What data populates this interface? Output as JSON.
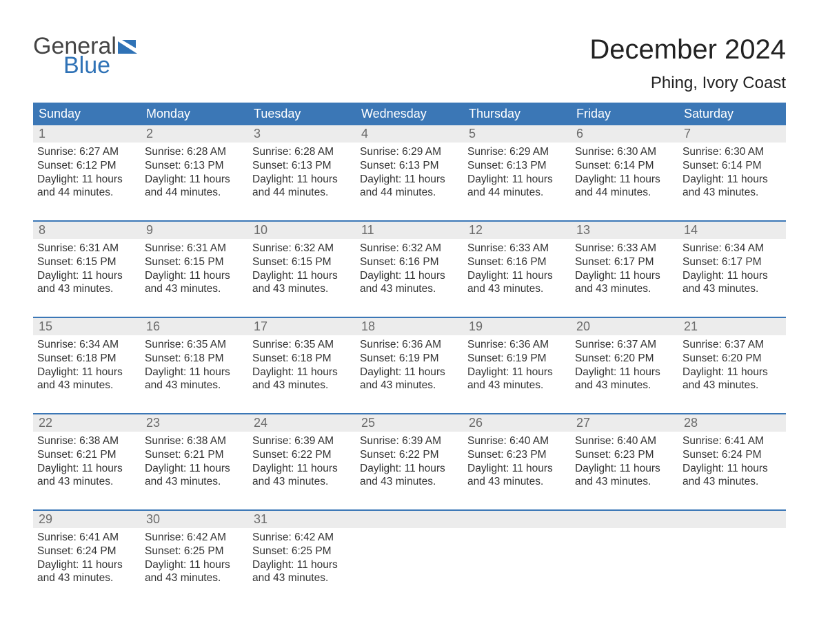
{
  "branding": {
    "word1": "General",
    "word2": "Blue",
    "word1_color": "#444444",
    "word2_color": "#2f72b6",
    "flag_color": "#2f72b6"
  },
  "header": {
    "month_title": "December 2024",
    "location": "Phing, Ivory Coast"
  },
  "styling": {
    "header_bg": "#3b77b6",
    "header_text_color": "#ffffff",
    "daynum_bg": "#ececec",
    "daynum_color": "#6b6b6b",
    "body_text_color": "#333333",
    "week_border_color": "#3b77b6",
    "background_color": "#ffffff",
    "weekday_fontsize": 18,
    "daynum_fontsize": 18,
    "body_fontsize": 15.5,
    "title_fontsize": 40,
    "location_fontsize": 24
  },
  "weekdays": [
    "Sunday",
    "Monday",
    "Tuesday",
    "Wednesday",
    "Thursday",
    "Friday",
    "Saturday"
  ],
  "labels": {
    "sunrise": "Sunrise:",
    "sunset": "Sunset:",
    "daylight": "Daylight:"
  },
  "weeks": [
    [
      {
        "n": "1",
        "sunrise": "6:27 AM",
        "sunset": "6:12 PM",
        "daylight": "11 hours and 44 minutes."
      },
      {
        "n": "2",
        "sunrise": "6:28 AM",
        "sunset": "6:13 PM",
        "daylight": "11 hours and 44 minutes."
      },
      {
        "n": "3",
        "sunrise": "6:28 AM",
        "sunset": "6:13 PM",
        "daylight": "11 hours and 44 minutes."
      },
      {
        "n": "4",
        "sunrise": "6:29 AM",
        "sunset": "6:13 PM",
        "daylight": "11 hours and 44 minutes."
      },
      {
        "n": "5",
        "sunrise": "6:29 AM",
        "sunset": "6:13 PM",
        "daylight": "11 hours and 44 minutes."
      },
      {
        "n": "6",
        "sunrise": "6:30 AM",
        "sunset": "6:14 PM",
        "daylight": "11 hours and 44 minutes."
      },
      {
        "n": "7",
        "sunrise": "6:30 AM",
        "sunset": "6:14 PM",
        "daylight": "11 hours and 43 minutes."
      }
    ],
    [
      {
        "n": "8",
        "sunrise": "6:31 AM",
        "sunset": "6:15 PM",
        "daylight": "11 hours and 43 minutes."
      },
      {
        "n": "9",
        "sunrise": "6:31 AM",
        "sunset": "6:15 PM",
        "daylight": "11 hours and 43 minutes."
      },
      {
        "n": "10",
        "sunrise": "6:32 AM",
        "sunset": "6:15 PM",
        "daylight": "11 hours and 43 minutes."
      },
      {
        "n": "11",
        "sunrise": "6:32 AM",
        "sunset": "6:16 PM",
        "daylight": "11 hours and 43 minutes."
      },
      {
        "n": "12",
        "sunrise": "6:33 AM",
        "sunset": "6:16 PM",
        "daylight": "11 hours and 43 minutes."
      },
      {
        "n": "13",
        "sunrise": "6:33 AM",
        "sunset": "6:17 PM",
        "daylight": "11 hours and 43 minutes."
      },
      {
        "n": "14",
        "sunrise": "6:34 AM",
        "sunset": "6:17 PM",
        "daylight": "11 hours and 43 minutes."
      }
    ],
    [
      {
        "n": "15",
        "sunrise": "6:34 AM",
        "sunset": "6:18 PM",
        "daylight": "11 hours and 43 minutes."
      },
      {
        "n": "16",
        "sunrise": "6:35 AM",
        "sunset": "6:18 PM",
        "daylight": "11 hours and 43 minutes."
      },
      {
        "n": "17",
        "sunrise": "6:35 AM",
        "sunset": "6:18 PM",
        "daylight": "11 hours and 43 minutes."
      },
      {
        "n": "18",
        "sunrise": "6:36 AM",
        "sunset": "6:19 PM",
        "daylight": "11 hours and 43 minutes."
      },
      {
        "n": "19",
        "sunrise": "6:36 AM",
        "sunset": "6:19 PM",
        "daylight": "11 hours and 43 minutes."
      },
      {
        "n": "20",
        "sunrise": "6:37 AM",
        "sunset": "6:20 PM",
        "daylight": "11 hours and 43 minutes."
      },
      {
        "n": "21",
        "sunrise": "6:37 AM",
        "sunset": "6:20 PM",
        "daylight": "11 hours and 43 minutes."
      }
    ],
    [
      {
        "n": "22",
        "sunrise": "6:38 AM",
        "sunset": "6:21 PM",
        "daylight": "11 hours and 43 minutes."
      },
      {
        "n": "23",
        "sunrise": "6:38 AM",
        "sunset": "6:21 PM",
        "daylight": "11 hours and 43 minutes."
      },
      {
        "n": "24",
        "sunrise": "6:39 AM",
        "sunset": "6:22 PM",
        "daylight": "11 hours and 43 minutes."
      },
      {
        "n": "25",
        "sunrise": "6:39 AM",
        "sunset": "6:22 PM",
        "daylight": "11 hours and 43 minutes."
      },
      {
        "n": "26",
        "sunrise": "6:40 AM",
        "sunset": "6:23 PM",
        "daylight": "11 hours and 43 minutes."
      },
      {
        "n": "27",
        "sunrise": "6:40 AM",
        "sunset": "6:23 PM",
        "daylight": "11 hours and 43 minutes."
      },
      {
        "n": "28",
        "sunrise": "6:41 AM",
        "sunset": "6:24 PM",
        "daylight": "11 hours and 43 minutes."
      }
    ],
    [
      {
        "n": "29",
        "sunrise": "6:41 AM",
        "sunset": "6:24 PM",
        "daylight": "11 hours and 43 minutes."
      },
      {
        "n": "30",
        "sunrise": "6:42 AM",
        "sunset": "6:25 PM",
        "daylight": "11 hours and 43 minutes."
      },
      {
        "n": "31",
        "sunrise": "6:42 AM",
        "sunset": "6:25 PM",
        "daylight": "11 hours and 43 minutes."
      },
      {
        "empty": true
      },
      {
        "empty": true
      },
      {
        "empty": true
      },
      {
        "empty": true
      }
    ]
  ]
}
